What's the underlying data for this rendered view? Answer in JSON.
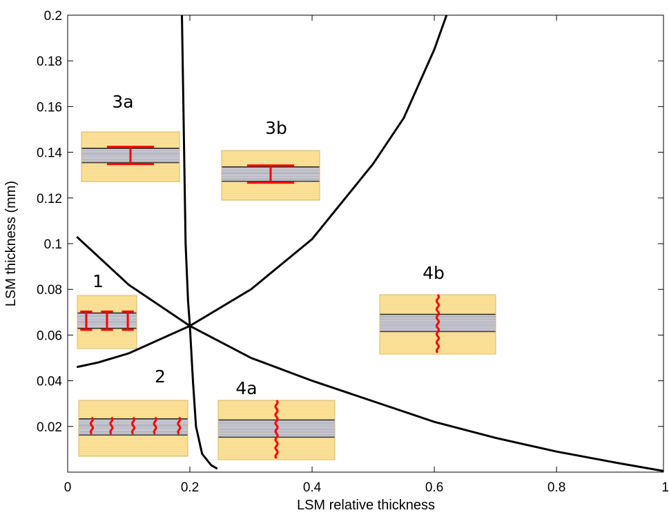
{
  "chart_data": {
    "type": "line",
    "x_label": "LSM relative thickness",
    "y_label": "LSM thickness (mm)",
    "xlim": [
      0,
      0.975
    ],
    "ylim": [
      0,
      0.2
    ],
    "xticks": [
      0,
      0.2,
      0.4,
      0.6,
      0.8,
      1
    ],
    "yticks": [
      0.02,
      0.04,
      0.06,
      0.08,
      0.1,
      0.12,
      0.14,
      0.16,
      0.18,
      0.2
    ],
    "series": [
      {
        "color": "#000000",
        "x": [
          0.187,
          0.19,
          0.193,
          0.197,
          0.2,
          0.205,
          0.21,
          0.22,
          0.235,
          0.245
        ],
        "values": [
          0.2,
          0.15,
          0.1,
          0.075,
          0.064,
          0.04,
          0.02,
          0.008,
          0.003,
          0.0015
        ]
      },
      {
        "color": "#000000",
        "x": [
          0.015,
          0.1,
          0.2,
          0.3,
          0.4,
          0.5,
          0.6,
          0.7,
          0.8,
          0.9,
          0.975
        ],
        "values": [
          0.103,
          0.082,
          0.064,
          0.05,
          0.04,
          0.031,
          0.022,
          0.015,
          0.009,
          0.004,
          0.0005
        ]
      },
      {
        "color": "#000000",
        "x": [
          0.015,
          0.05,
          0.1,
          0.2,
          0.3,
          0.4,
          0.5,
          0.55,
          0.6,
          0.62
        ],
        "values": [
          0.046,
          0.048,
          0.052,
          0.064,
          0.08,
          0.102,
          0.135,
          0.155,
          0.185,
          0.2
        ]
      }
    ],
    "annotations": [
      "3a",
      "3b",
      "1",
      "2",
      "4a",
      "4b"
    ]
  }
}
